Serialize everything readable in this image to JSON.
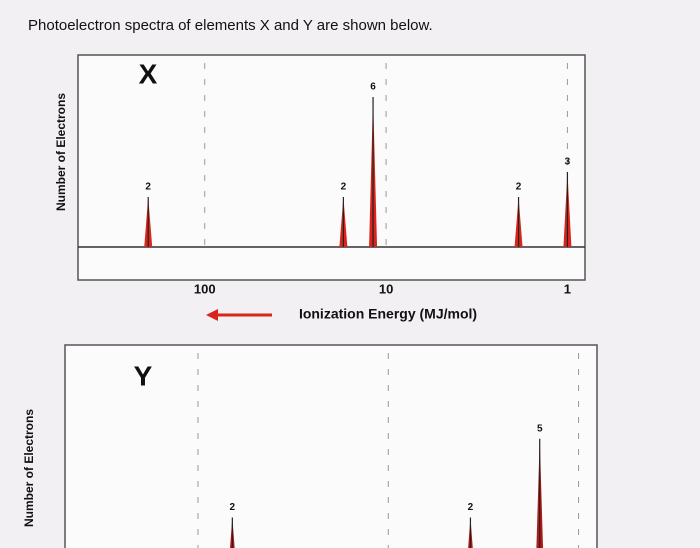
{
  "heading": "Photoelectron spectra of elements X and Y are shown below.",
  "chart_data": [
    {
      "type": "stem",
      "title": "X",
      "ylabel": "Number of Electrons",
      "xlabel": "Ionization Energy (MJ/mol)",
      "log_x": true,
      "xlim": [
        500,
        0.8
      ],
      "xticks": [
        100,
        10,
        1
      ],
      "tick_labels": true,
      "grid": true,
      "ylim": [
        0,
        8
      ],
      "color": "#d8261c",
      "x": [
        205,
        17.2,
        11.8,
        1.86,
        1.0
      ],
      "values": [
        2,
        2,
        6,
        2,
        3
      ]
    },
    {
      "type": "stem",
      "title": "Y",
      "ylabel": "Number of Electrons",
      "log_x": true,
      "xlim": [
        500,
        0.8
      ],
      "xticks": [
        100,
        10,
        1
      ],
      "tick_labels": false,
      "grid": true,
      "ylim": [
        0,
        8
      ],
      "color": "#b01a14",
      "x": [
        66,
        3.7,
        1.6
      ],
      "values": [
        2,
        2,
        5
      ]
    }
  ]
}
